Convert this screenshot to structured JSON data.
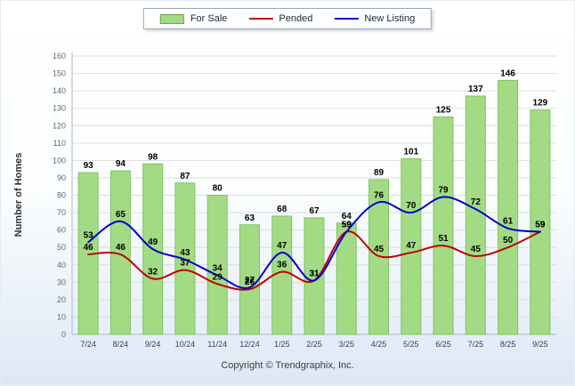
{
  "legend": {
    "items": [
      {
        "label": "For Sale"
      },
      {
        "label": "Pended"
      },
      {
        "label": "New Listing"
      }
    ]
  },
  "ylabel": "Number of Homes",
  "copyright": "Copyright © Trendgraphix, Inc.",
  "chart_data": {
    "type": "bar",
    "categories": [
      "7/24",
      "8/24",
      "9/24",
      "10/24",
      "11/24",
      "12/24",
      "1/25",
      "2/25",
      "3/25",
      "4/25",
      "5/25",
      "6/25",
      "7/25",
      "8/25",
      "9/25"
    ],
    "series": [
      {
        "name": "For Sale",
        "type": "bar",
        "color": "#a3db85",
        "border": "#7fc45f",
        "values": [
          93,
          94,
          98,
          87,
          80,
          63,
          68,
          67,
          64,
          89,
          101,
          125,
          137,
          146,
          129
        ]
      },
      {
        "name": "Pended",
        "type": "line",
        "color": "#c00000",
        "values": [
          46,
          46,
          32,
          37,
          29,
          26,
          36,
          31,
          59,
          45,
          47,
          51,
          45,
          50,
          59
        ]
      },
      {
        "name": "New Listing",
        "type": "line",
        "color": "#0000cc",
        "values": [
          53,
          65,
          49,
          43,
          34,
          27,
          47,
          31,
          59,
          76,
          70,
          79,
          72,
          61,
          59
        ]
      }
    ],
    "ylim": [
      0,
      160
    ],
    "ytick_step": 10,
    "grid": true,
    "legend_position": "top"
  }
}
